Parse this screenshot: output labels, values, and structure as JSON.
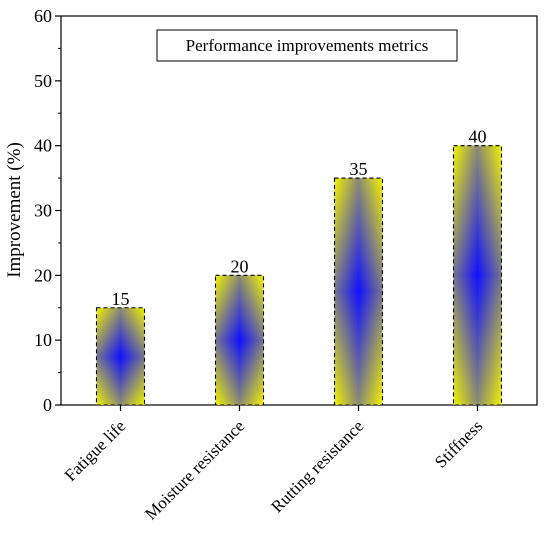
{
  "chart_data": {
    "type": "bar",
    "title": "Performance improvements metrics",
    "xlabel": "",
    "ylabel": "Improvement (%)",
    "categories": [
      "Fatigue life",
      "Moisture resistance",
      "Rutting resistance",
      "Stiffness"
    ],
    "values": [
      15,
      20,
      35,
      40
    ],
    "ylim": [
      0,
      60
    ],
    "yticks": [
      0,
      10,
      20,
      30,
      40,
      50,
      60
    ],
    "grid": false,
    "legend": "none",
    "bar_fill": {
      "edge": "#f2f200",
      "center": "#1010ff"
    },
    "bar_border": "#000000"
  }
}
